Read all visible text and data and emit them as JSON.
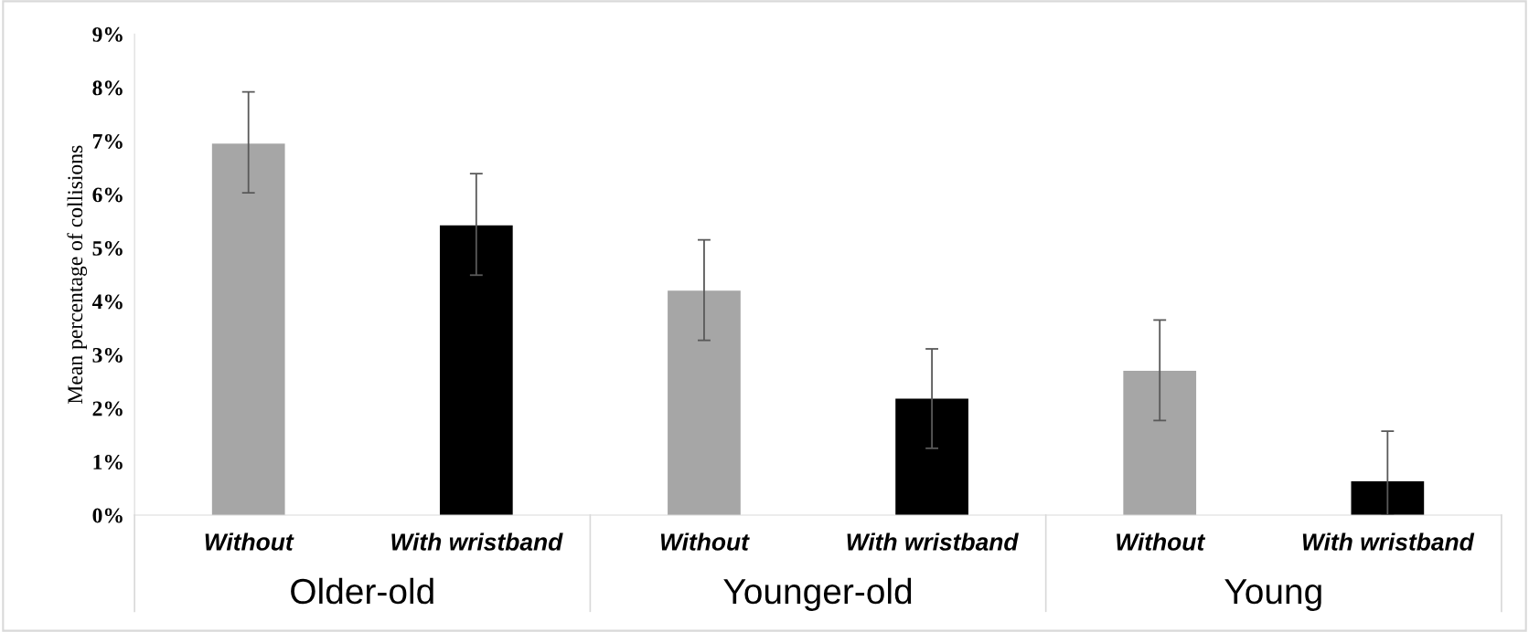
{
  "chart_data": {
    "type": "bar",
    "ylabel": "Mean percentage of collisions",
    "categories": [
      "Without",
      "With wristband",
      "Without",
      "With wristband",
      "Without",
      "With wristband"
    ],
    "values": [
      6.95,
      5.42,
      4.2,
      2.18,
      2.7,
      0.63
    ],
    "colors": [
      "#a6a6a6",
      "#000000",
      "#a6a6a6",
      "#000000",
      "#a6a6a6",
      "#000000"
    ],
    "errors": [
      [
        6.03,
        7.92
      ],
      [
        4.49,
        6.39
      ],
      [
        3.27,
        5.15
      ],
      [
        1.25,
        3.11
      ],
      [
        1.77,
        3.65
      ],
      [
        0,
        1.57
      ]
    ],
    "annotations": [
      "Older-old",
      "Younger-old",
      "Young"
    ],
    "ylim": [
      0,
      9
    ],
    "yticks": [
      {
        "value": 0,
        "label": "0%"
      },
      {
        "value": 1,
        "label": "1%"
      },
      {
        "value": 2,
        "label": "2%"
      },
      {
        "value": 3,
        "label": "3%"
      },
      {
        "value": 4,
        "label": "4%"
      },
      {
        "value": 5,
        "label": "5%"
      },
      {
        "value": 6,
        "label": "6%"
      },
      {
        "value": 7,
        "label": "7%"
      },
      {
        "value": 8,
        "label": "8%"
      },
      {
        "value": 9,
        "label": "9%"
      }
    ],
    "grid": false
  }
}
